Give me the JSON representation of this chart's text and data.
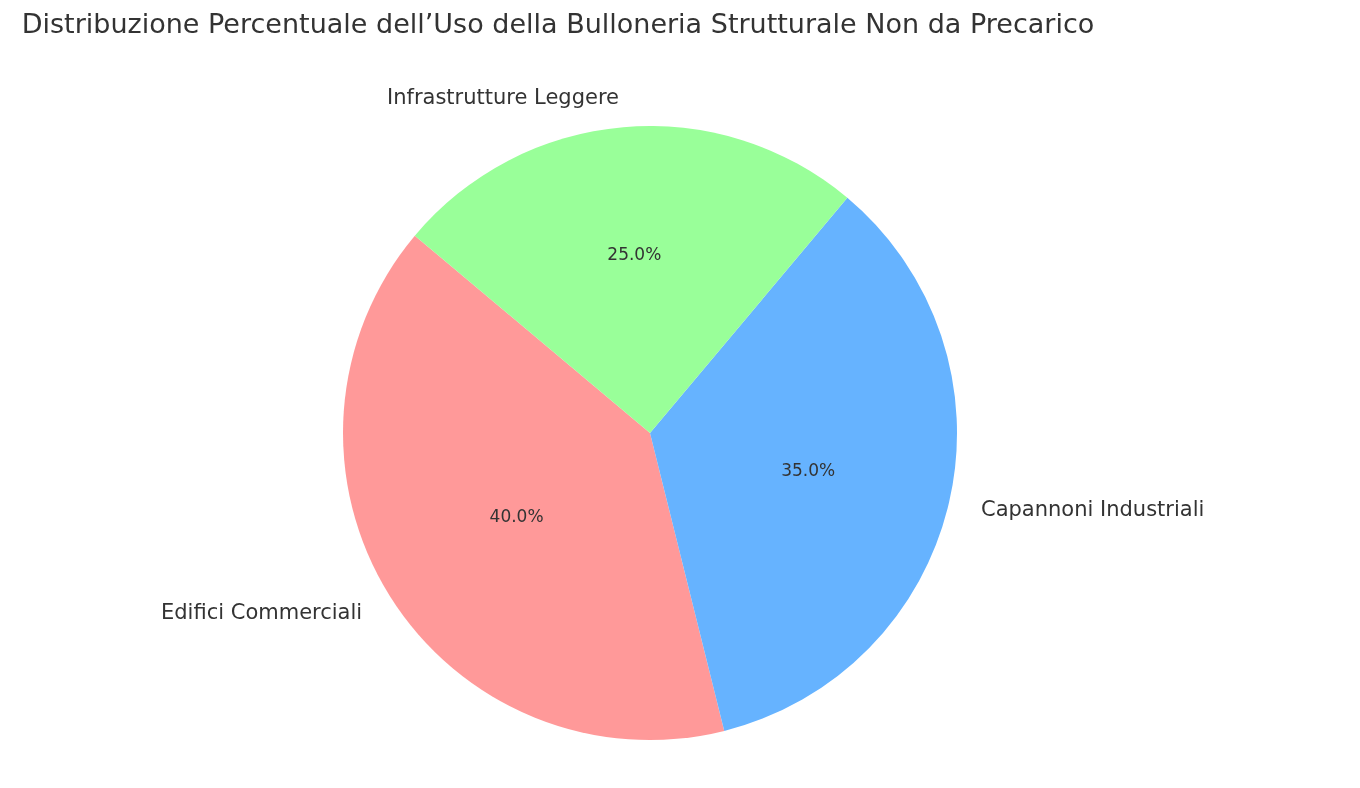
{
  "chart_data": {
    "type": "pie",
    "title": "Distribuzione Percentuale dell’Uso della Bulloneria Strutturale Non da Precarico",
    "categories": [
      "Edifici Commerciali",
      "Capannoni Industriali",
      "Infrastrutture Leggere"
    ],
    "values": [
      40,
      35,
      25
    ],
    "colors": [
      "#ff9999",
      "#66b3ff",
      "#99ff99"
    ],
    "value_labels": [
      "40.0%",
      "35.0%",
      "25.0%"
    ]
  }
}
